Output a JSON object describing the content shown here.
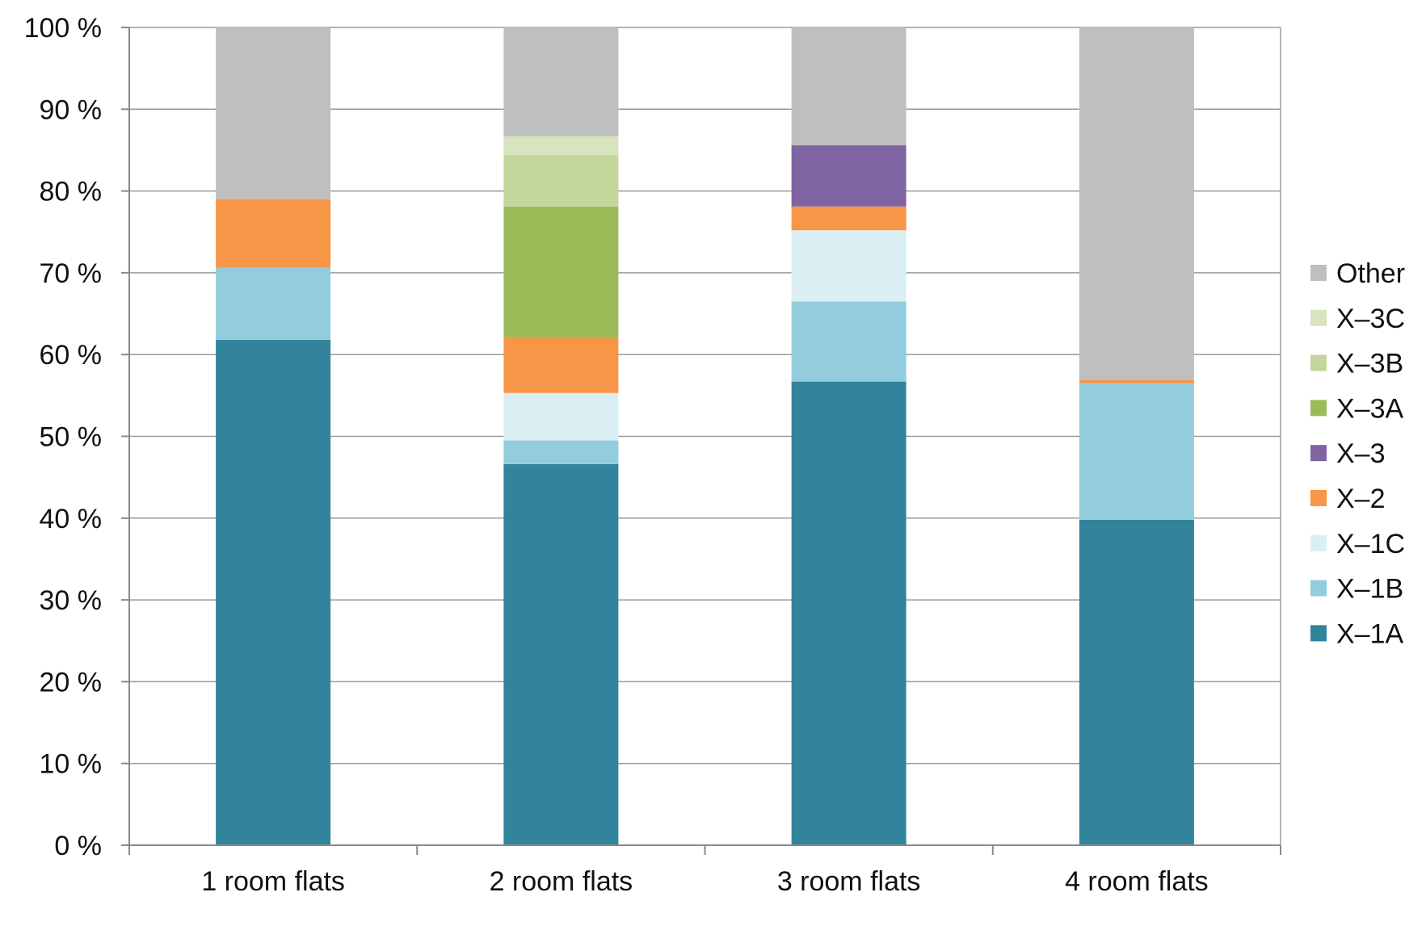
{
  "chart_data": {
    "type": "bar",
    "stacked": true,
    "categories": [
      "1 room flats",
      "2 room flats",
      "3 room flats",
      "4 room flats"
    ],
    "yticks": [
      "0 %",
      "10 %",
      "20 %",
      "30 %",
      "40 %",
      "50 %",
      "60 %",
      "70 %",
      "80 %",
      "90 %",
      "100 %"
    ],
    "ylim": [
      0,
      100
    ],
    "grid": true,
    "legend_position": "right",
    "series": [
      {
        "name": "X–1A",
        "color": "#31849B",
        "values": [
          61.8,
          46.6,
          56.7,
          39.8
        ]
      },
      {
        "name": "X–1B",
        "color": "#93CDDD",
        "values": [
          8.8,
          2.9,
          9.8,
          16.7
        ]
      },
      {
        "name": "X–1C",
        "color": "#DBEEF4",
        "values": [
          0,
          5.8,
          8.7,
          0
        ]
      },
      {
        "name": "X–2",
        "color": "#F79646",
        "values": [
          8.4,
          6.7,
          2.9,
          0.4
        ]
      },
      {
        "name": "X–3",
        "color": "#8064A2",
        "values": [
          0,
          0,
          7.5,
          0
        ]
      },
      {
        "name": "X–3A",
        "color": "#9BBB59",
        "values": [
          0,
          16.1,
          0,
          0
        ]
      },
      {
        "name": "X–3B",
        "color": "#C3D69B",
        "values": [
          0,
          6.3,
          0,
          0
        ]
      },
      {
        "name": "X–3C",
        "color": "#D7E4BD",
        "values": [
          0,
          2.3,
          0,
          0
        ]
      },
      {
        "name": "Other",
        "color": "#BFBFBF",
        "values": [
          21.0,
          13.3,
          14.4,
          43.1
        ]
      }
    ]
  }
}
